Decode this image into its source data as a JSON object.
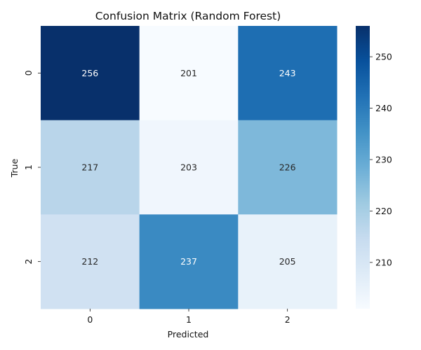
{
  "chart_data": {
    "type": "heatmap",
    "title": "Confusion Matrix (Random Forest)",
    "xlabel": "Predicted",
    "ylabel": "True",
    "x_categories": [
      "0",
      "1",
      "2"
    ],
    "y_categories": [
      "0",
      "1",
      "2"
    ],
    "values": [
      [
        256,
        201,
        243
      ],
      [
        217,
        203,
        226
      ],
      [
        212,
        237,
        205
      ]
    ],
    "colormap": "Blues",
    "color_range": [
      201,
      256
    ],
    "colorbar_ticks": [
      210,
      220,
      230,
      240,
      250
    ],
    "colorbar_tick_labels": [
      "210",
      "220",
      "230",
      "240",
      "250"
    ],
    "colors": {
      "low": "#f7fbff",
      "high": "#08306b",
      "label_dark": "#262626",
      "label_light": "#ffffff"
    }
  }
}
